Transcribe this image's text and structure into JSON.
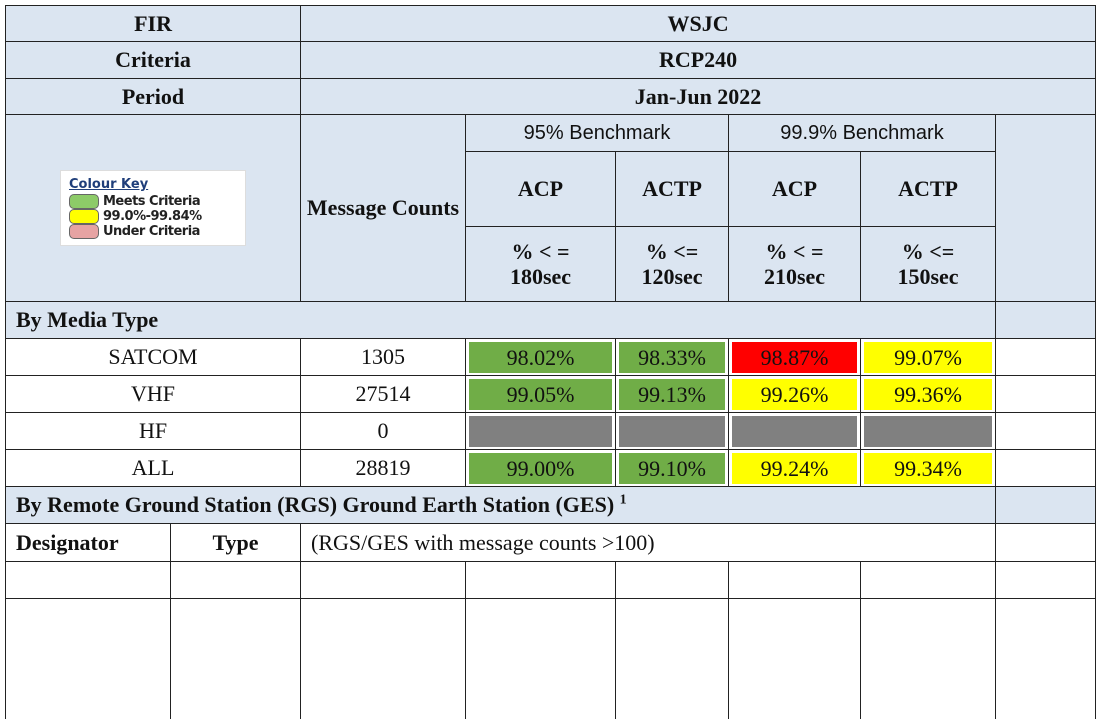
{
  "header": {
    "rows": [
      {
        "label": "FIR",
        "value": "WSJC"
      },
      {
        "label": "Criteria",
        "value": "RCP240"
      },
      {
        "label": "Period",
        "value": "Jan-Jun 2022"
      }
    ]
  },
  "colour_key": {
    "title": "Colour Key",
    "entries": [
      {
        "label": "Meets Criteria",
        "color": "#8dcb68"
      },
      {
        "label": "99.0%-99.84%",
        "color": "#ffff00"
      },
      {
        "label": "Under Criteria",
        "color": "#e6a3a3"
      }
    ]
  },
  "columns": {
    "message_counts": "Message Counts",
    "benchmarks": [
      {
        "label": "95% Benchmark",
        "metrics": [
          {
            "name": "ACP",
            "threshold": "% < =\n180sec"
          },
          {
            "name": "ACTP",
            "threshold": "% <=\n120sec"
          }
        ]
      },
      {
        "label": "99.9% Benchmark",
        "metrics": [
          {
            "name": "ACP",
            "threshold": "% < =\n210sec"
          },
          {
            "name": "ACTP",
            "threshold": "% <=\n150sec"
          }
        ]
      }
    ]
  },
  "media_section": {
    "title": "By Media Type",
    "rows": [
      {
        "name": "SATCOM",
        "count": 1305,
        "cells": [
          {
            "text": "98.02%",
            "color": "#70ad47"
          },
          {
            "text": "98.33%",
            "color": "#70ad47"
          },
          {
            "text": "98.87%",
            "color": "#ff0000"
          },
          {
            "text": "99.07%",
            "color": "#ffff00"
          }
        ]
      },
      {
        "name": "VHF",
        "count": 27514,
        "cells": [
          {
            "text": "99.05%",
            "color": "#70ad47"
          },
          {
            "text": "99.13%",
            "color": "#70ad47"
          },
          {
            "text": "99.26%",
            "color": "#ffff00"
          },
          {
            "text": "99.36%",
            "color": "#ffff00"
          }
        ]
      },
      {
        "name": "HF",
        "count": 0,
        "cells": [
          {
            "color": "#808080"
          },
          {
            "color": "#808080"
          },
          {
            "color": "#808080"
          },
          {
            "color": "#808080"
          }
        ]
      },
      {
        "name": "ALL",
        "count": 28819,
        "cells": [
          {
            "text": "99.00%",
            "color": "#70ad47"
          },
          {
            "text": "99.10%",
            "color": "#70ad47"
          },
          {
            "text": "99.24%",
            "color": "#ffff00"
          },
          {
            "text": "99.34%",
            "color": "#ffff00"
          }
        ]
      }
    ]
  },
  "rgs_section": {
    "title": "By Remote Ground Station (RGS) Ground Earth Station (GES)",
    "footnote": "1",
    "designator": "Designator",
    "type": "Type",
    "note": "(RGS/GES with message counts >100)"
  }
}
